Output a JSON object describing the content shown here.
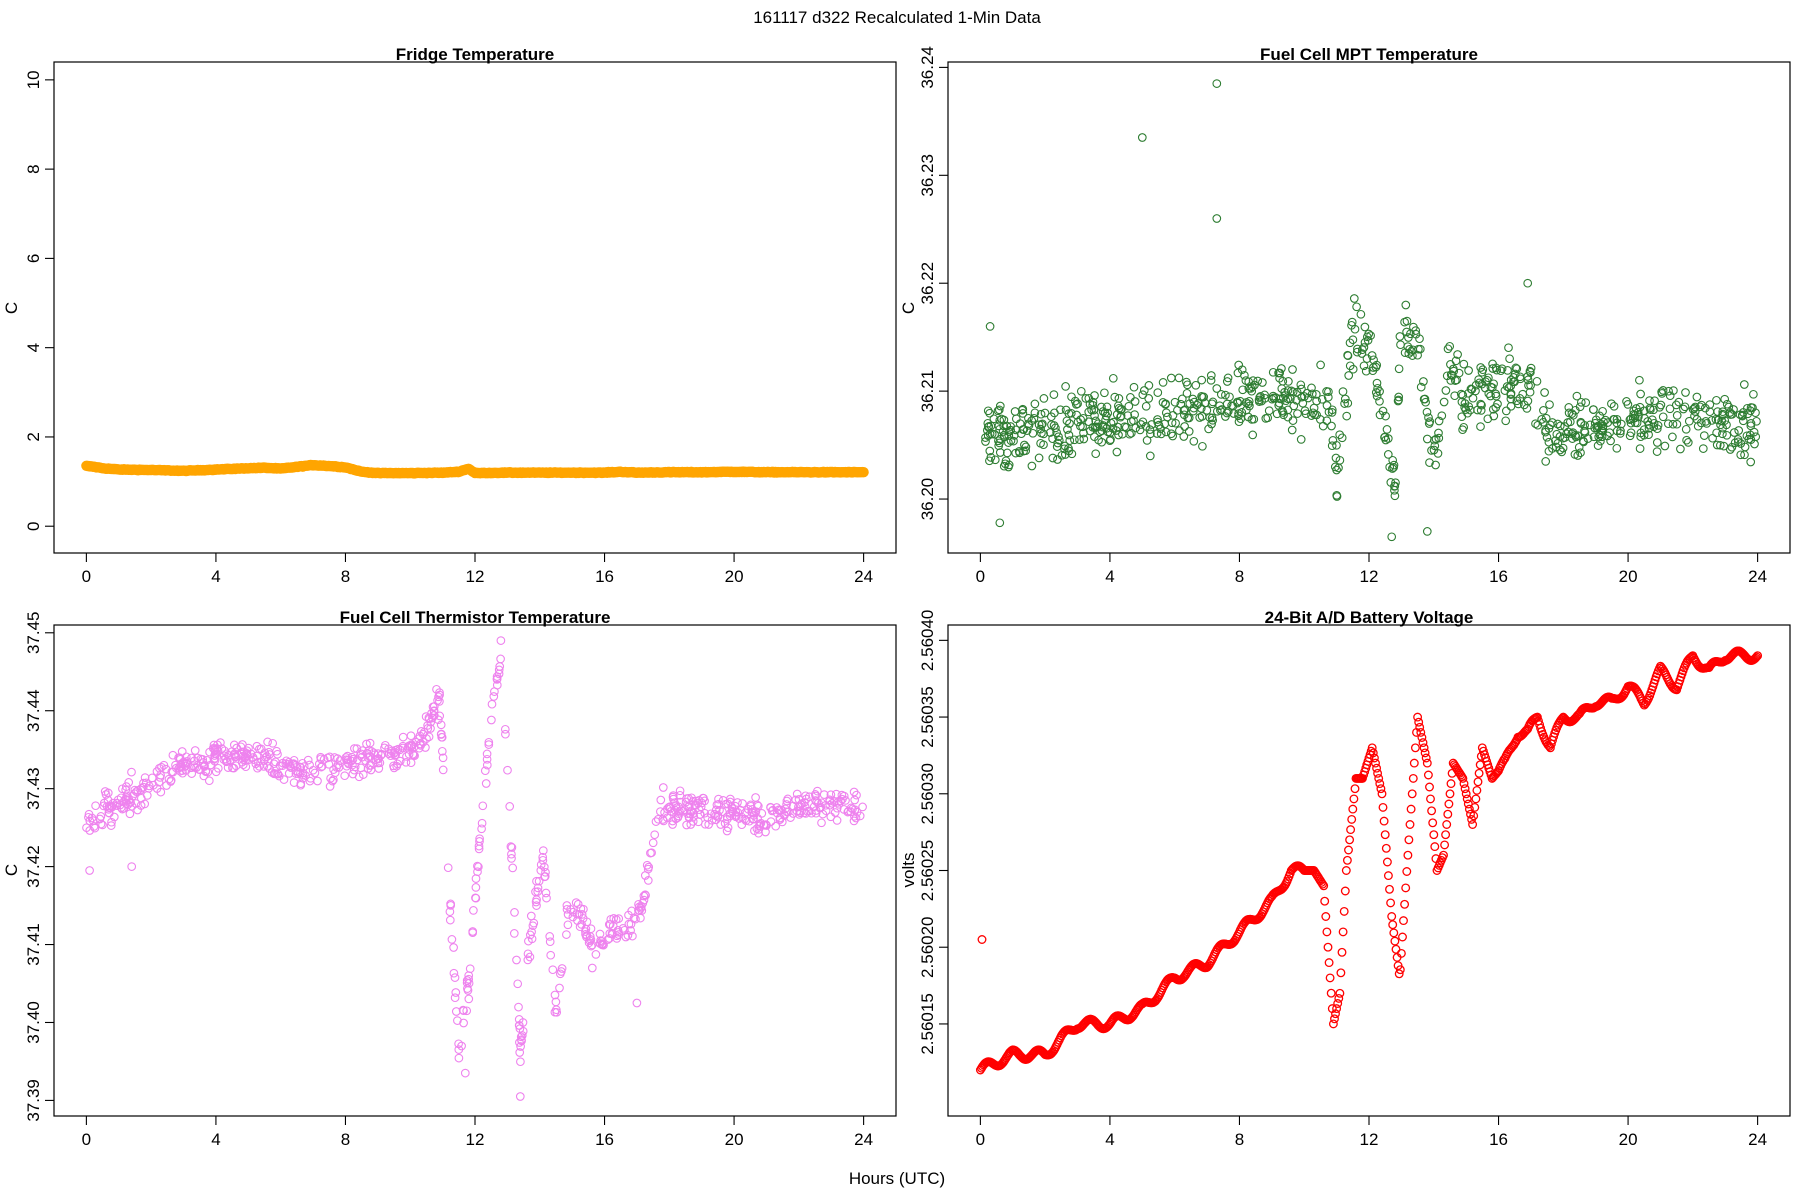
{
  "figure": {
    "suptitle": "161117   d322   Recalculated 1-Min Data",
    "xlabel": "Hours (UTC)"
  },
  "chart_data": [
    {
      "id": "fridge",
      "type": "scatter",
      "title": "Fridge Temperature",
      "ylabel": "C",
      "xlabel": "Hours (UTC)",
      "xlim": [
        -1,
        25
      ],
      "ylim": [
        -0.6,
        10.4
      ],
      "xticks": [
        0,
        4,
        8,
        12,
        16,
        20,
        24
      ],
      "yticks": [
        0,
        2,
        4,
        6,
        8,
        10
      ],
      "ytick_labels": [
        "0",
        "2",
        "4",
        "6",
        "8",
        "10"
      ],
      "color": "#FFA500",
      "series": [
        {
          "name": "Fridge Temperature",
          "x": [
            0,
            0.25,
            0.5,
            1,
            2,
            3,
            4,
            5,
            5.5,
            6,
            7,
            7.5,
            8,
            8.5,
            9,
            10,
            11,
            11.5,
            11.8,
            12,
            13,
            14,
            15,
            16,
            16.5,
            17,
            18,
            19,
            20,
            21,
            22,
            23,
            24
          ],
          "values": [
            1.35,
            1.33,
            1.3,
            1.27,
            1.26,
            1.24,
            1.27,
            1.3,
            1.31,
            1.29,
            1.37,
            1.35,
            1.32,
            1.22,
            1.19,
            1.19,
            1.2,
            1.22,
            1.29,
            1.19,
            1.2,
            1.2,
            1.2,
            1.2,
            1.22,
            1.2,
            1.21,
            1.21,
            1.22,
            1.21,
            1.21,
            1.21,
            1.21
          ]
        }
      ]
    },
    {
      "id": "mpt",
      "type": "scatter",
      "title": "Fuel Cell MPT Temperature",
      "ylabel": "C",
      "xlabel": "Hours (UTC)",
      "xlim": [
        -1,
        25
      ],
      "ylim": [
        36.195,
        36.2405
      ],
      "xticks": [
        0,
        4,
        8,
        12,
        16,
        20,
        24
      ],
      "yticks": [
        36.2,
        36.21,
        36.22,
        36.23,
        36.24
      ],
      "ytick_labels": [
        "36.20",
        "36.21",
        "36.22",
        "36.23",
        "36.24"
      ],
      "color": "#2E7D32",
      "series": [
        {
          "name": "Fuel Cell MPT Temperature",
          "x": [
            0,
            1,
            2,
            3,
            4,
            5,
            6,
            7,
            8,
            9,
            10,
            10.8,
            11,
            11.5,
            12,
            12.5,
            12.8,
            13,
            13.5,
            14,
            14.5,
            15,
            16,
            17,
            17.5,
            18,
            19,
            20,
            21,
            22,
            23,
            24
          ],
          "values": [
            36.2065,
            36.206,
            36.2065,
            36.207,
            36.2075,
            36.208,
            36.2085,
            36.2085,
            36.209,
            36.2095,
            36.2095,
            36.209,
            36.2025,
            36.215,
            36.2145,
            36.206,
            36.201,
            36.2165,
            36.2135,
            36.204,
            36.2125,
            36.209,
            36.2105,
            36.2105,
            36.2055,
            36.2065,
            36.2065,
            36.207,
            36.2075,
            36.2075,
            36.207,
            36.206
          ],
          "noise": 0.0035,
          "outliers": [
            [
              5.0,
              36.2335
            ],
            [
              7.3,
              36.2385
            ],
            [
              7.3,
              36.226
            ],
            [
              0.3,
              36.216
            ],
            [
              16.9,
              36.22
            ],
            [
              13.8,
              36.197
            ],
            [
              12.7,
              36.1965
            ],
            [
              0.6,
              36.1978
            ]
          ]
        }
      ]
    },
    {
      "id": "thermistor",
      "type": "scatter",
      "title": "Fuel Cell Thermistor Temperature",
      "ylabel": "C",
      "xlabel": "Hours (UTC)",
      "xlim": [
        -1,
        25
      ],
      "ylim": [
        37.388,
        37.451
      ],
      "xticks": [
        0,
        4,
        8,
        12,
        16,
        20,
        24
      ],
      "yticks": [
        37.39,
        37.4,
        37.41,
        37.42,
        37.43,
        37.44,
        37.45
      ],
      "ytick_labels": [
        "37.39",
        "37.40",
        "37.41",
        "37.42",
        "37.43",
        "37.44",
        "37.45"
      ],
      "color": "#EE82EE",
      "series": [
        {
          "name": "Fuel Cell Thermistor Temperature",
          "x": [
            0,
            1,
            2,
            3,
            4,
            5,
            6,
            7,
            8,
            9,
            10,
            10.5,
            10.9,
            11.2,
            11.5,
            11.8,
            12.2,
            12.5,
            12.8,
            13.1,
            13.4,
            13.7,
            14.1,
            14.5,
            14.9,
            15.3,
            15.7,
            16.2,
            16.7,
            17.2,
            17.6,
            18,
            19,
            20,
            21,
            22,
            23,
            24
          ],
          "values": [
            37.426,
            37.428,
            37.431,
            37.433,
            37.434,
            37.4345,
            37.433,
            37.432,
            37.433,
            37.434,
            37.4345,
            37.437,
            37.442,
            37.418,
            37.396,
            37.405,
            37.426,
            37.439,
            37.447,
            37.425,
            37.396,
            37.411,
            37.422,
            37.401,
            37.415,
            37.414,
            37.408,
            37.412,
            37.412,
            37.415,
            37.426,
            37.428,
            37.427,
            37.427,
            37.426,
            37.428,
            37.428,
            37.427
          ],
          "noise": 0.0025,
          "outliers": [
            [
              17.0,
              37.4025
            ],
            [
              13.4,
              37.3905
            ],
            [
              11.7,
              37.3935
            ],
            [
              12.8,
              37.449
            ],
            [
              0.1,
              37.4195
            ],
            [
              1.4,
              37.42
            ]
          ]
        }
      ]
    },
    {
      "id": "battery",
      "type": "scatter",
      "title": "24-Bit A/D Battery Voltage",
      "ylabel": "volts",
      "xlabel": "Hours (UTC)",
      "xlim": [
        -1,
        25
      ],
      "ylim": [
        2.56009,
        2.56041
      ],
      "xticks": [
        0,
        4,
        8,
        12,
        16,
        20,
        24
      ],
      "yticks": [
        2.56015,
        2.5602,
        2.56025,
        2.5603,
        2.56035,
        2.5604
      ],
      "ytick_labels": [
        "2.56015",
        "2.56020",
        "2.56025",
        "2.56030",
        "2.56035",
        "2.56040"
      ],
      "color": "#FF0000",
      "series": [
        {
          "name": "24-Bit A/D Battery Voltage",
          "x": [
            0,
            1,
            2,
            3,
            4,
            5,
            6,
            7,
            8,
            9,
            9.6,
            10.3,
            10.6,
            10.9,
            11.1,
            11.3,
            11.6,
            11.8,
            12.1,
            12.4,
            12.7,
            12.95,
            13.2,
            13.5,
            13.8,
            14.1,
            14.3,
            14.6,
            14.9,
            15.2,
            15.5,
            15.8,
            16.2,
            16.6,
            16.9,
            17.2,
            17.6,
            18,
            18.5,
            19,
            19.5,
            20,
            20.5,
            21,
            21.5,
            22,
            22.5,
            23,
            23.5,
            24
          ],
          "values": [
            2.56012,
            2.56013,
            2.56013,
            2.56015,
            2.56015,
            2.56016,
            2.56018,
            2.56019,
            2.56021,
            2.56023,
            2.56025,
            2.56025,
            2.56024,
            2.56015,
            2.56017,
            2.56025,
            2.56031,
            2.56031,
            2.56033,
            2.5603,
            2.56022,
            2.56018,
            2.56026,
            2.56035,
            2.56032,
            2.56025,
            2.56026,
            2.56032,
            2.56031,
            2.56028,
            2.56033,
            2.56031,
            2.56032,
            2.56034,
            2.56034,
            2.56035,
            2.56033,
            2.56035,
            2.56035,
            2.56036,
            2.56036,
            2.56037,
            2.56036,
            2.56038,
            2.56037,
            2.56039,
            2.56038,
            2.56039,
            2.56039,
            2.56039
          ],
          "wiggle": 9e-06,
          "outliers": [
            [
              0.05,
              2.560205
            ]
          ]
        }
      ]
    }
  ]
}
